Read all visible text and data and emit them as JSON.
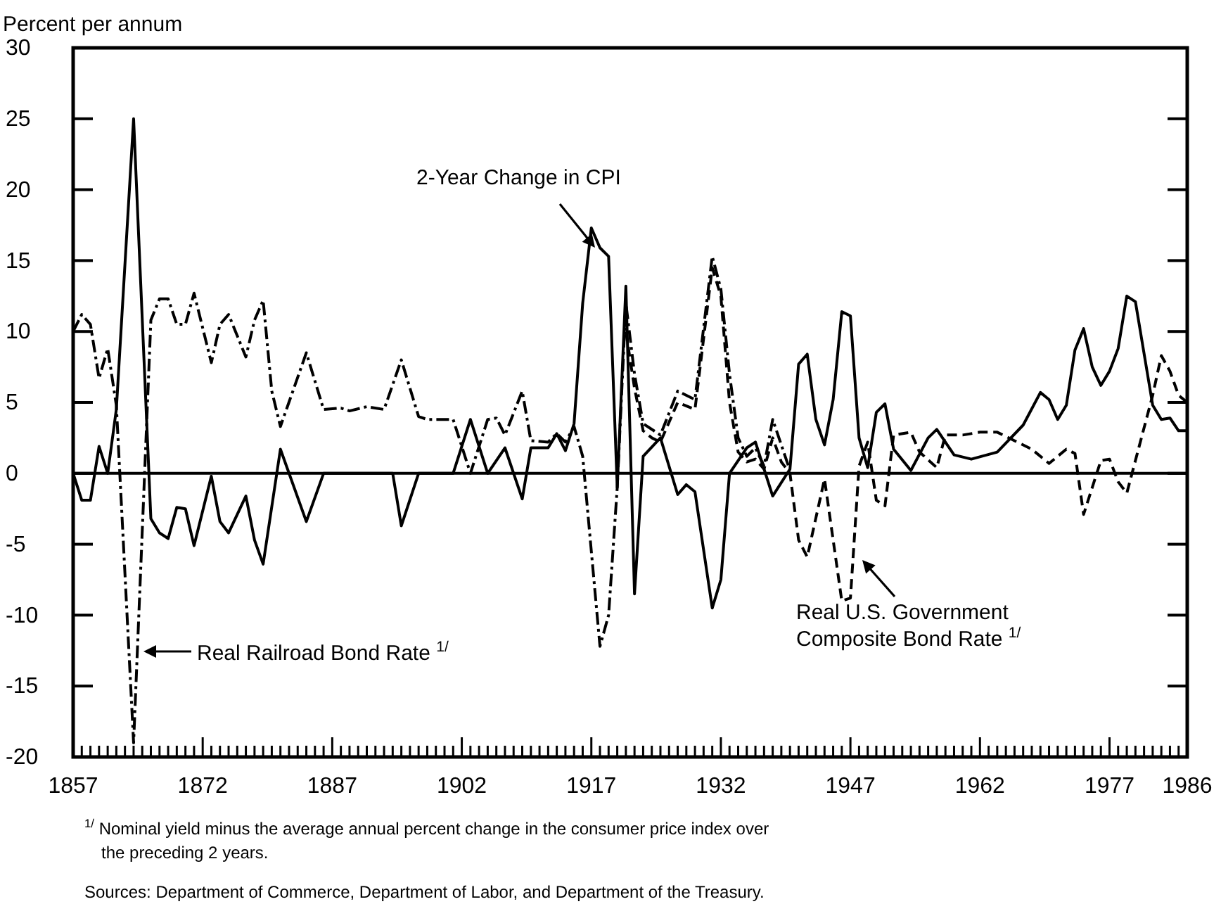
{
  "chart_data": {
    "type": "line",
    "ylabel": "Percent per annum",
    "xlim": [
      1857,
      1986
    ],
    "ylim": [
      -20,
      30
    ],
    "yticks": [
      -20,
      -15,
      -10,
      -5,
      0,
      5,
      10,
      15,
      20,
      25,
      30
    ],
    "xticks": [
      1857,
      {
        "value": 1858,
        "label": null
      },
      {
        "value": 1859,
        "label": null
      },
      {
        "value": 1860,
        "label": null
      },
      {
        "value": 1861,
        "label": null
      },
      {
        "value": 1862,
        "label": null
      },
      {
        "value": 1863,
        "label": null
      },
      {
        "value": 1864,
        "label": null
      },
      {
        "value": 1865,
        "label": null
      },
      {
        "value": 1866,
        "label": null
      },
      {
        "value": 1867,
        "label": null
      },
      {
        "value": 1868,
        "label": null
      },
      {
        "value": 1869,
        "label": null
      },
      {
        "value": 1870,
        "label": null
      },
      {
        "value": 1871,
        "label": null
      },
      1872,
      {
        "value": 1873,
        "label": null
      },
      {
        "value": 1874,
        "label": null
      },
      {
        "value": 1875,
        "label": null
      },
      {
        "value": 1876,
        "label": null
      },
      {
        "value": 1877,
        "label": null
      },
      {
        "value": 1878,
        "label": null
      },
      {
        "value": 1879,
        "label": null
      },
      {
        "value": 1880,
        "label": null
      },
      {
        "value": 1881,
        "label": null
      },
      {
        "value": 1882,
        "label": null
      },
      {
        "value": 1883,
        "label": null
      },
      {
        "value": 1884,
        "label": null
      },
      {
        "value": 1885,
        "label": null
      },
      {
        "value": 1886,
        "label": null
      },
      1887,
      {
        "value": 1888,
        "label": null
      },
      {
        "value": 1889,
        "label": null
      },
      {
        "value": 1890,
        "label": null
      },
      {
        "value": 1891,
        "label": null
      },
      {
        "value": 1892,
        "label": null
      },
      {
        "value": 1893,
        "label": null
      },
      {
        "value": 1894,
        "label": null
      },
      {
        "value": 1895,
        "label": null
      },
      {
        "value": 1896,
        "label": null
      },
      {
        "value": 1897,
        "label": null
      },
      {
        "value": 1898,
        "label": null
      },
      {
        "value": 1899,
        "label": null
      },
      {
        "value": 1900,
        "label": null
      },
      {
        "value": 1901,
        "label": null
      },
      1902,
      {
        "value": 1903,
        "label": null
      },
      {
        "value": 1904,
        "label": null
      },
      {
        "value": 1905,
        "label": null
      },
      {
        "value": 1906,
        "label": null
      },
      {
        "value": 1907,
        "label": null
      },
      {
        "value": 1908,
        "label": null
      },
      {
        "value": 1909,
        "label": null
      },
      {
        "value": 1910,
        "label": null
      },
      {
        "value": 1911,
        "label": null
      },
      {
        "value": 1912,
        "label": null
      },
      {
        "value": 1913,
        "label": null
      },
      {
        "value": 1914,
        "label": null
      },
      {
        "value": 1915,
        "label": null
      },
      {
        "value": 1916,
        "label": null
      },
      1917,
      {
        "value": 1918,
        "label": null
      },
      {
        "value": 1919,
        "label": null
      },
      {
        "value": 1920,
        "label": null
      },
      {
        "value": 1921,
        "label": null
      },
      {
        "value": 1922,
        "label": null
      },
      {
        "value": 1923,
        "label": null
      },
      {
        "value": 1924,
        "label": null
      },
      {
        "value": 1925,
        "label": null
      },
      {
        "value": 1926,
        "label": null
      },
      {
        "value": 1927,
        "label": null
      },
      {
        "value": 1928,
        "label": null
      },
      {
        "value": 1929,
        "label": null
      },
      {
        "value": 1930,
        "label": null
      },
      {
        "value": 1931,
        "label": null
      },
      1932,
      {
        "value": 1933,
        "label": null
      },
      {
        "value": 1934,
        "label": null
      },
      {
        "value": 1935,
        "label": null
      },
      {
        "value": 1936,
        "label": null
      },
      {
        "value": 1937,
        "label": null
      },
      {
        "value": 1938,
        "label": null
      },
      {
        "value": 1939,
        "label": null
      },
      {
        "value": 1940,
        "label": null
      },
      {
        "value": 1941,
        "label": null
      },
      {
        "value": 1942,
        "label": null
      },
      {
        "value": 1943,
        "label": null
      },
      {
        "value": 1944,
        "label": null
      },
      {
        "value": 1945,
        "label": null
      },
      {
        "value": 1946,
        "label": null
      },
      1947,
      {
        "value": 1948,
        "label": null
      },
      {
        "value": 1949,
        "label": null
      },
      {
        "value": 1950,
        "label": null
      },
      {
        "value": 1951,
        "label": null
      },
      {
        "value": 1952,
        "label": null
      },
      {
        "value": 1953,
        "label": null
      },
      {
        "value": 1954,
        "label": null
      },
      {
        "value": 1955,
        "label": null
      },
      {
        "value": 1956,
        "label": null
      },
      {
        "value": 1957,
        "label": null
      },
      {
        "value": 1958,
        "label": null
      },
      {
        "value": 1959,
        "label": null
      },
      {
        "value": 1960,
        "label": null
      },
      {
        "value": 1961,
        "label": null
      },
      1962,
      {
        "value": 1963,
        "label": null
      },
      {
        "value": 1964,
        "label": null
      },
      {
        "value": 1965,
        "label": null
      },
      {
        "value": 1966,
        "label": null
      },
      {
        "value": 1967,
        "label": null
      },
      {
        "value": 1968,
        "label": null
      },
      {
        "value": 1969,
        "label": null
      },
      {
        "value": 1970,
        "label": null
      },
      {
        "value": 1971,
        "label": null
      },
      {
        "value": 1972,
        "label": null
      },
      {
        "value": 1973,
        "label": null
      },
      {
        "value": 1974,
        "label": null
      },
      {
        "value": 1975,
        "label": null
      },
      {
        "value": 1976,
        "label": null
      },
      1977,
      {
        "value": 1978,
        "label": null
      },
      {
        "value": 1979,
        "label": null
      },
      {
        "value": 1980,
        "label": null
      },
      {
        "value": 1981,
        "label": null
      },
      {
        "value": 1982,
        "label": null
      },
      {
        "value": 1983,
        "label": null
      },
      {
        "value": 1984,
        "label": null
      },
      {
        "value": 1985,
        "label": null
      },
      1986
    ],
    "grid": false,
    "ref_lines": [
      {
        "axis": "y",
        "value": 0,
        "label": null,
        "color": "#000000",
        "line_style": "solid"
      }
    ],
    "series": [
      {
        "name": "2-Year Change in CPI",
        "color": "#000000",
        "line_style": "solid",
        "x": [
          1857,
          1858,
          1859,
          1860,
          1861,
          1862,
          1864,
          1866,
          1867,
          1868,
          1869,
          1870,
          1871,
          1873,
          1874,
          1875,
          1877,
          1878,
          1879,
          1881,
          1884,
          1886,
          1894,
          1895,
          1897,
          1901,
          1903,
          1905,
          1907,
          1909,
          1910,
          1912,
          1913,
          1914,
          1915,
          1916,
          1917,
          1918,
          1919,
          1920,
          1921,
          1922,
          1923,
          1925,
          1927,
          1928,
          1929,
          1931,
          1932,
          1933,
          1935,
          1936,
          1938,
          1940,
          1941,
          1942,
          1943,
          1944,
          1945,
          1946,
          1947,
          1948,
          1949,
          1950,
          1951,
          1952,
          1954,
          1956,
          1957,
          1959,
          1961,
          1964,
          1967,
          1969,
          1970,
          1971,
          1972,
          1973,
          1974,
          1975,
          1976,
          1977,
          1978,
          1979,
          1980,
          1982,
          1983,
          1984,
          1985,
          1986
        ],
        "values": [
          0,
          -1.9,
          -1.9,
          1.9,
          0,
          4.5,
          25,
          -3.2,
          -4.2,
          -4.6,
          -2.4,
          -2.5,
          -5.1,
          -0.2,
          -3.4,
          -4.2,
          -1.6,
          -4.7,
          -6.4,
          1.7,
          -3.4,
          0,
          0,
          -3.7,
          0,
          0,
          3.8,
          0,
          1.8,
          -1.8,
          1.8,
          1.8,
          2.8,
          1.6,
          3.5,
          12,
          17.3,
          15.9,
          15.3,
          -1,
          13.2,
          -8.5,
          1.2,
          2.5,
          -1.5,
          -0.8,
          -1.3,
          -9.5,
          -7.5,
          0,
          1.8,
          2.2,
          -1.6,
          0.3,
          7.7,
          8.4,
          3.8,
          2,
          5.2,
          11.4,
          11.1,
          2.5,
          0.4,
          4.3,
          4.9,
          1.7,
          0.2,
          2.5,
          3.1,
          1.3,
          1,
          1.5,
          3.4,
          5.7,
          5.2,
          3.8,
          4.8,
          8.7,
          10.2,
          7.5,
          6.2,
          7.2,
          8.8,
          12.5,
          12.1,
          4.8,
          3.8,
          3.9,
          3,
          3
        ]
      },
      {
        "name": "Real Railroad Bond Rate $^{1/}$",
        "color": "#000000",
        "line_style": "dashdot",
        "x": [
          1857,
          1858,
          1859,
          1860,
          1861,
          1862,
          1864,
          1866,
          1867,
          1868,
          1869,
          1870,
          1871,
          1873,
          1874,
          1875,
          1877,
          1878,
          1879,
          1880,
          1881,
          1884,
          1886,
          1888,
          1889,
          1891,
          1893,
          1895,
          1897,
          1898,
          1901,
          1903,
          1905,
          1906,
          1907,
          1909,
          1910,
          1912,
          1913,
          1914,
          1915,
          1916,
          1918,
          1919,
          1920,
          1921,
          1922,
          1923,
          1925,
          1927,
          1929,
          1931,
          1932,
          1933,
          1934,
          1935,
          1936,
          1937,
          1938,
          1939,
          1940
        ],
        "values": [
          10,
          11.2,
          10.5,
          6.7,
          8.8,
          4.8,
          -19,
          10.8,
          12.3,
          12.3,
          10.5,
          10.5,
          12.7,
          7.8,
          10.5,
          11.2,
          8.2,
          10.8,
          12.2,
          5.8,
          3.3,
          8.5,
          4.5,
          4.6,
          4.4,
          4.7,
          4.5,
          8,
          4,
          3.8,
          3.8,
          0,
          3.8,
          3.9,
          2.7,
          5.8,
          2.3,
          2.2,
          2.8,
          2.2,
          3.3,
          1.2,
          -12.2,
          -10,
          -1,
          12,
          7,
          3.5,
          2.7,
          5.8,
          5.2,
          15.3,
          13,
          7,
          2.5,
          1.2,
          1.8,
          0.5,
          3.8,
          2,
          0.2
        ]
      },
      {
        "name": "Real U.S. Government Composite Bond Rate $^{1/}$",
        "color": "#000000",
        "line_style": "dashed",
        "x": [
          1921,
          1922,
          1923,
          1924,
          1925,
          1927,
          1929,
          1931,
          1932,
          1933,
          1934,
          1935,
          1936,
          1937,
          1938,
          1939,
          1940,
          1941,
          1942,
          1944,
          1946,
          1947,
          1948,
          1949,
          1950,
          1951,
          1952,
          1954,
          1955,
          1957,
          1958,
          1960,
          1962,
          1964,
          1966,
          1968,
          1970,
          1972,
          1973,
          1974,
          1976,
          1977,
          1978,
          1979,
          1982,
          1983,
          1984,
          1985,
          1986
        ],
        "values": [
          10,
          6,
          3,
          2.5,
          2.2,
          5,
          4.5,
          14.5,
          12.5,
          5,
          1.5,
          0.8,
          1,
          0.3,
          2.5,
          0.8,
          0,
          -4.7,
          -5.9,
          -0.4,
          -9,
          -8.8,
          0.5,
          2.2,
          -1.9,
          -2.3,
          2.7,
          2.9,
          1.5,
          0.4,
          2.7,
          2.7,
          2.9,
          2.9,
          2.3,
          1.7,
          0.7,
          1.7,
          1.4,
          -2.9,
          0.9,
          1,
          -0.6,
          -1.4,
          5.5,
          8.3,
          7.2,
          5.5,
          5
        ]
      }
    ],
    "annotations": [
      "$^{1/}$ Nominal yield minus the average annual percent change in the consumer price index over the preceding 2 years.",
      "Sources: Department of Commerce, Department of Labor, and Department of the Treasury."
    ]
  }
}
